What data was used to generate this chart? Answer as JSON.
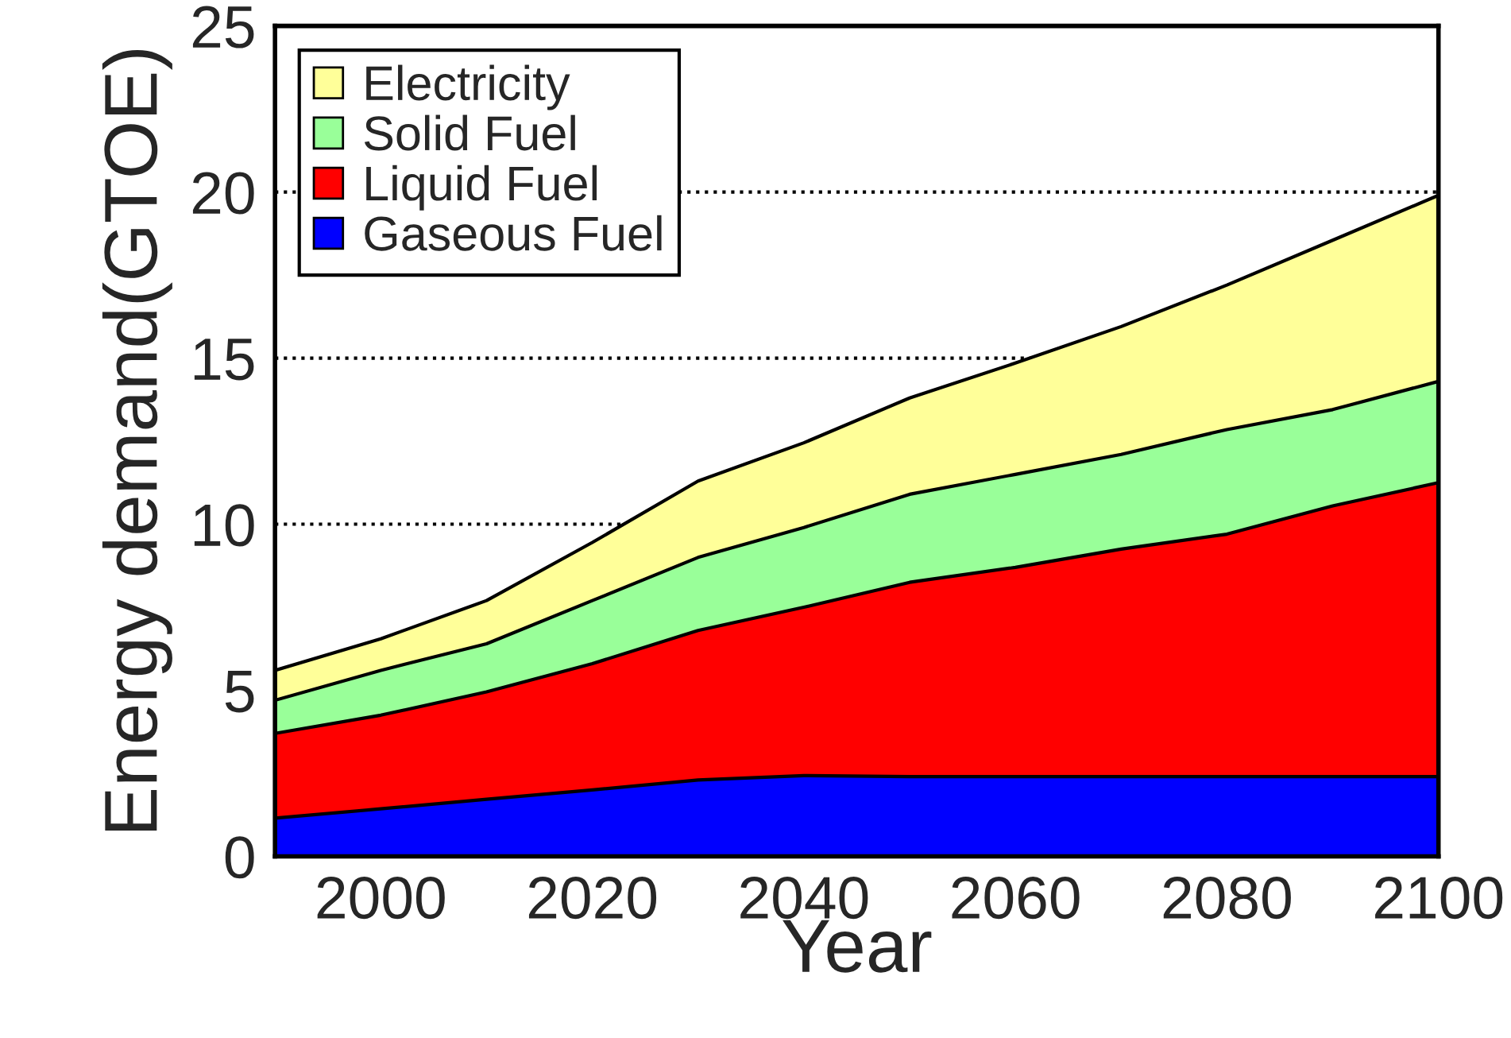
{
  "chart_data": {
    "type": "area",
    "stacked": true,
    "xlabel": "Year",
    "ylabel": "Energy demand(GTOE)",
    "x": [
      1990,
      2000,
      2010,
      2020,
      2030,
      2040,
      2050,
      2060,
      2070,
      2080,
      2090,
      2100
    ],
    "series": [
      {
        "name": "Gaseous Fuel",
        "color": "#0000ff",
        "values": [
          1.15,
          1.43,
          1.72,
          2.0,
          2.3,
          2.43,
          2.4,
          2.4,
          2.4,
          2.4,
          2.4,
          2.4
        ]
      },
      {
        "name": "Liquid Fuel",
        "color": "#ff0000",
        "values": [
          2.55,
          2.82,
          3.23,
          3.8,
          4.5,
          5.07,
          5.85,
          6.3,
          6.85,
          7.3,
          8.15,
          8.85
        ]
      },
      {
        "name": "Solid Fuel",
        "color": "#99ff99",
        "values": [
          1.0,
          1.35,
          1.45,
          1.9,
          2.2,
          2.4,
          2.65,
          2.8,
          2.85,
          3.15,
          2.9,
          3.05
        ]
      },
      {
        "name": "Electricity",
        "color": "#ffff99",
        "values": [
          0.9,
          0.95,
          1.3,
          1.75,
          2.3,
          2.55,
          2.9,
          3.35,
          3.85,
          4.35,
          5.1,
          5.6
        ]
      }
    ],
    "xlim": [
      1990,
      2100
    ],
    "xticks": [
      2000,
      2020,
      2040,
      2060,
      2080,
      2100
    ],
    "ylim": [
      0,
      25
    ],
    "yticks": [
      0,
      5,
      10,
      15,
      20,
      25
    ],
    "grid": "y",
    "legend": "top left"
  }
}
